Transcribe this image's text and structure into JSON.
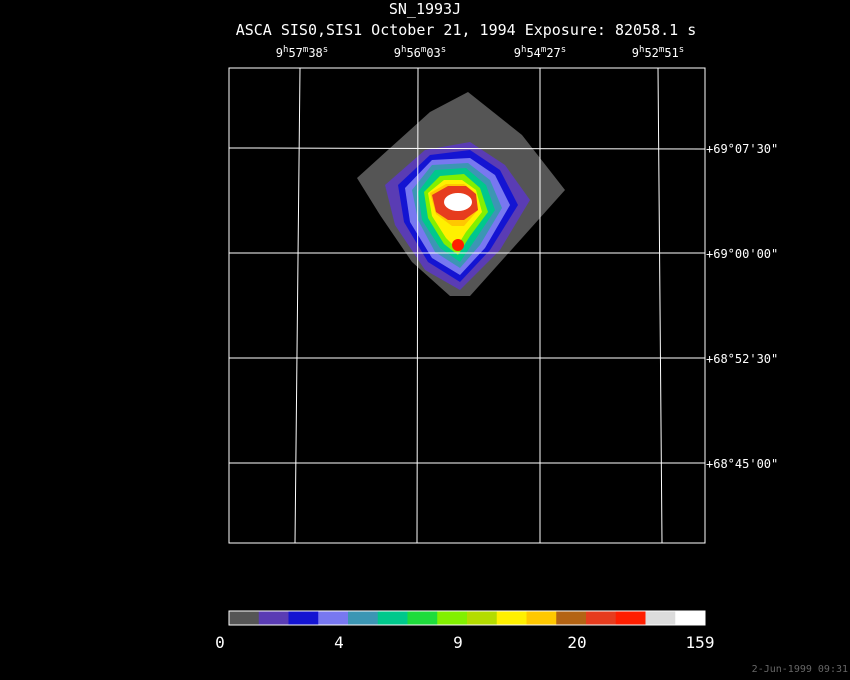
{
  "title": "SN_1993J",
  "subtitle": "ASCA SIS0,SIS1 October 21, 1994 Exposure: 82058.1 s",
  "ra_labels": [
    [
      "9",
      "h",
      "57",
      "m",
      "38",
      "s"
    ],
    [
      "9",
      "h",
      "56",
      "m",
      "03",
      "s"
    ],
    [
      "9",
      "h",
      "54",
      "m",
      "27",
      "s"
    ],
    [
      "9",
      "h",
      "52",
      "m",
      "51",
      "s"
    ]
  ],
  "dec_labels": [
    "+69°07'30\"",
    "+69°00'00\"",
    "+68°52'30\"",
    "+68°45'00\""
  ],
  "colorbar": {
    "colors": [
      "#555555",
      "#5a3cb4",
      "#1414d2",
      "#7878f0",
      "#3c96b4",
      "#00c88c",
      "#1edc3c",
      "#82f000",
      "#b4dc00",
      "#fff000",
      "#ffc800",
      "#b46414",
      "#e63c1e",
      "#ff1e00",
      "#dcdcdc",
      "#ffffff"
    ],
    "labels": [
      "0",
      "4",
      "9",
      "20",
      "159"
    ]
  },
  "timestamp": "2-Jun-1999 09:31"
}
